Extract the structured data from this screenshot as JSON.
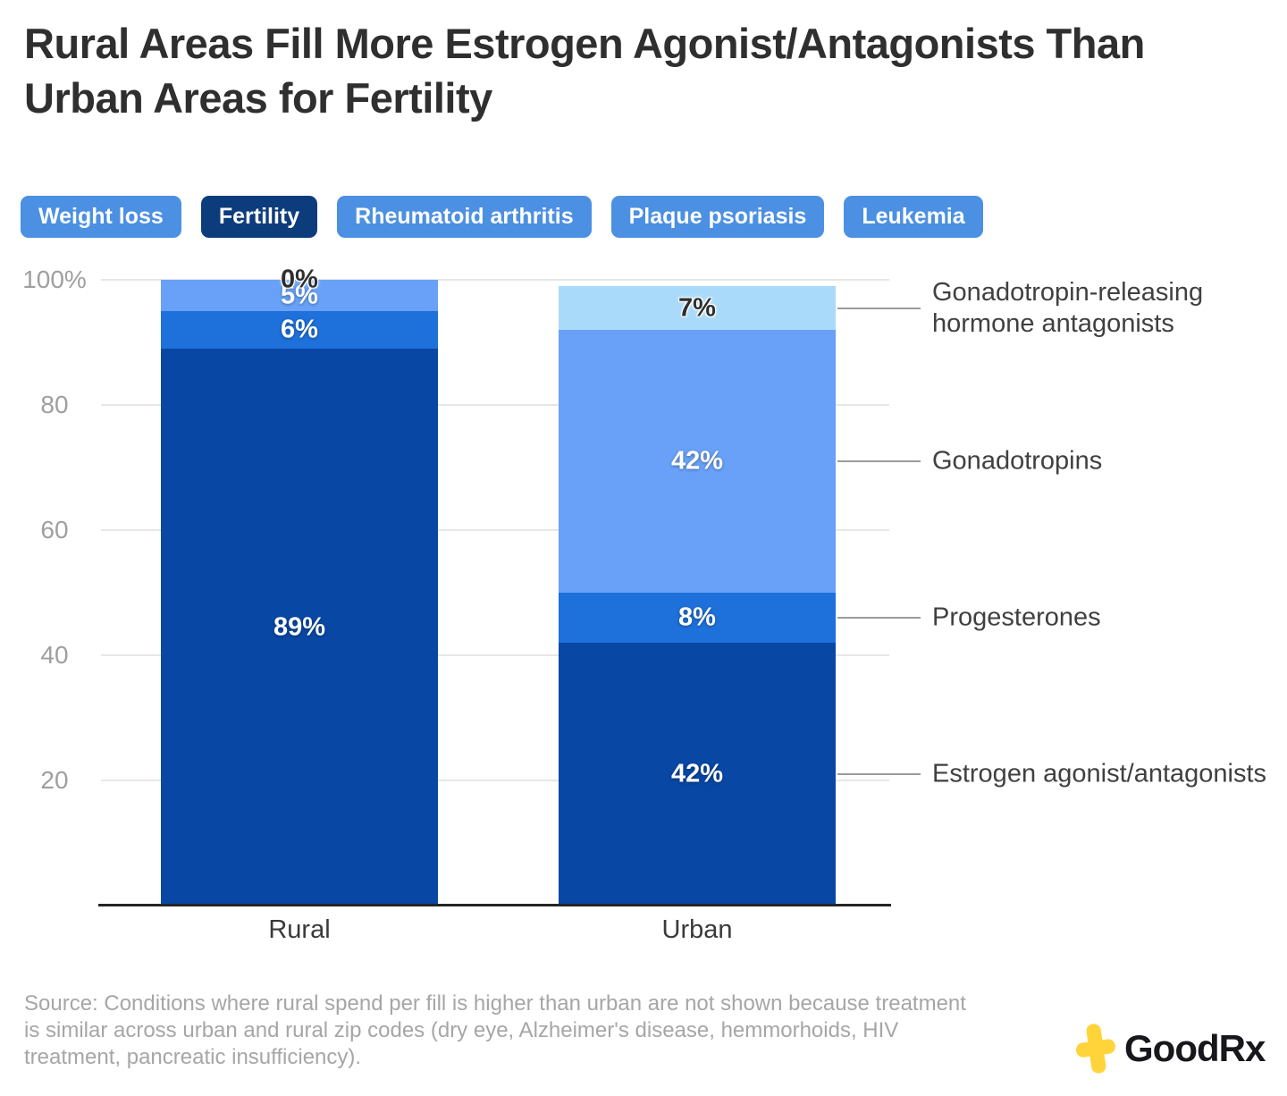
{
  "title": "Rural Areas Fill More Estrogen Agonist/Antagonists Than\nUrban Areas for Fertility",
  "tabs": [
    {
      "label": "Weight loss",
      "active": false
    },
    {
      "label": "Fertility",
      "active": true
    },
    {
      "label": "Rheumatoid arthritis",
      "active": false
    },
    {
      "label": "Plaque psoriasis",
      "active": false
    },
    {
      "label": "Leukemia",
      "active": false
    }
  ],
  "tab_colors": {
    "default": "#4B90E2",
    "active": "#0D3C7D",
    "text": "#FFFFFF"
  },
  "chart_data": {
    "type": "bar",
    "stacked": true,
    "categories": [
      "Rural",
      "Urban"
    ],
    "series": [
      {
        "name": "Gonadotropin-releasing hormone antagonists",
        "legend_label": "Gonadotropin-releasing\nhormone antagonists",
        "values": [
          0,
          7
        ],
        "color": "#AADAF9",
        "label_style": "dark"
      },
      {
        "name": "Gonadotropins",
        "legend_label": "Gonadotropins",
        "values": [
          5,
          42
        ],
        "color": "#68A1F7",
        "label_style": "light"
      },
      {
        "name": "Progesterones",
        "legend_label": "Progesterones",
        "values": [
          6,
          8
        ],
        "color": "#1E70DA",
        "label_style": "light"
      },
      {
        "name": "Estrogen agonist/antagonists",
        "legend_label": "Estrogen agonist/antagonists",
        "values": [
          89,
          42
        ],
        "color": "#0847A4",
        "label_style": "light"
      }
    ],
    "value_suffix": "%",
    "ylim": [
      0,
      100
    ],
    "yticks": [
      {
        "value": 100,
        "label": "100%"
      },
      {
        "value": 80,
        "label": "80"
      },
      {
        "value": 60,
        "label": "60"
      },
      {
        "value": 40,
        "label": "40"
      },
      {
        "value": 20,
        "label": "20"
      }
    ],
    "grid": true,
    "legend_position": "right"
  },
  "source": "Source: Conditions where rural spend per fill is higher than urban are not shown because treatment\nis similar across urban and rural zip codes (dry eye, Alzheimer's disease, hemmorhoids, HIV\ntreatment, pancreatic insufficiency).",
  "logo": {
    "text": "GoodRx",
    "icon": "goodrx-cross-icon",
    "icon_color": "#FFD43B"
  }
}
